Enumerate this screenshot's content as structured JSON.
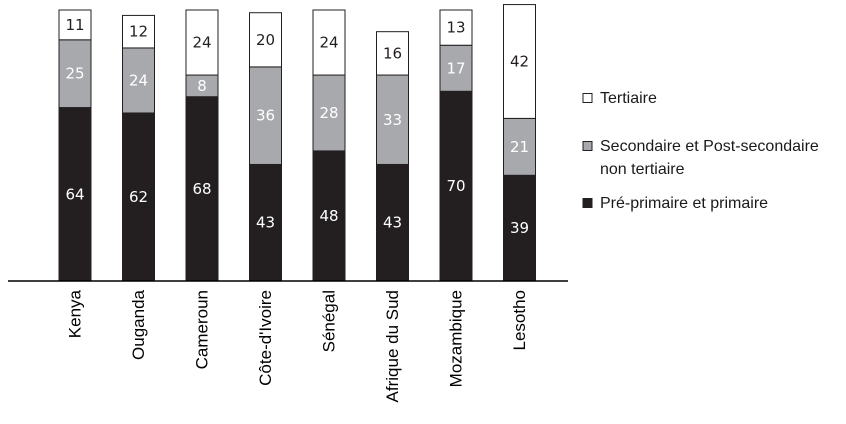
{
  "chart_data": {
    "type": "bar",
    "stacked": true,
    "categories": [
      "Kenya",
      "Ouganda",
      "Cameroun",
      "Côte-d'Ivoire",
      "Sénégal",
      "Afrique du Sud",
      "Mozambique",
      "Lesotho"
    ],
    "series": [
      {
        "name": "Pré-primaire et primaire",
        "color": "#231f20",
        "label_color": "#ffffff",
        "values": [
          64,
          62,
          68,
          43,
          48,
          43,
          70,
          39
        ]
      },
      {
        "name": "Secondaire et Post-secondaire non tertiaire",
        "color": "#a7a9ac",
        "label_color": "#ffffff",
        "values": [
          25,
          24,
          8,
          36,
          28,
          33,
          17,
          21
        ]
      },
      {
        "name": "Tertiaire",
        "color": "#ffffff",
        "label_color": "#231f20",
        "values": [
          11,
          12,
          24,
          20,
          24,
          16,
          13,
          42
        ]
      }
    ],
    "legend_order": [
      2,
      1,
      0
    ],
    "legend_lines": [
      [
        "Tertiaire"
      ],
      [
        "Secondaire et Post-secondaire",
        "non tertiaire"
      ],
      [
        "Pré-primaire et primaire"
      ]
    ],
    "ylim": [
      0,
      100
    ],
    "grid": false,
    "legend_position": "right",
    "xlabel": "",
    "ylabel": ""
  }
}
